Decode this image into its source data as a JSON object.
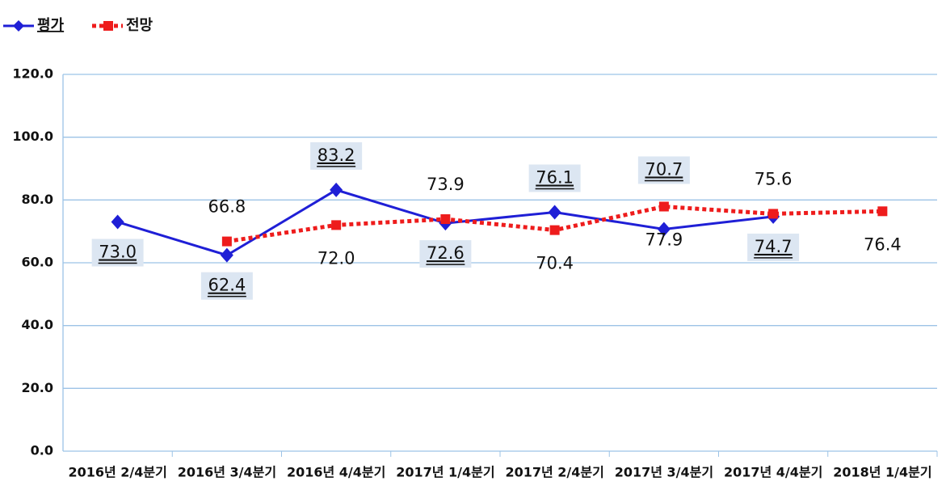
{
  "chart_data": {
    "type": "line",
    "categories": [
      "2016년 2/4분기",
      "2016년 3/4분기",
      "2016년 4/4분기",
      "2017년 1/4분기",
      "2017년 2/4분기",
      "2017년 3/4분기",
      "2017년 4/4분기",
      "2018년 1/4분기"
    ],
    "series": [
      {
        "name": "평가",
        "color": "#1f1fd6",
        "values": [
          73.0,
          62.4,
          83.2,
          72.6,
          76.1,
          70.7,
          74.7,
          null
        ],
        "value_labels": [
          "73.0",
          "62.4",
          "83.2",
          "72.6",
          "76.1",
          "70.7",
          "74.7",
          null
        ]
      },
      {
        "name": "전망",
        "color": "#ee1c1c",
        "values": [
          null,
          66.8,
          72.0,
          73.9,
          70.4,
          77.9,
          75.6,
          76.4
        ],
        "value_labels": [
          null,
          "66.8",
          "72.0",
          "73.9",
          "70.4",
          "77.9",
          "75.6",
          "76.4"
        ]
      }
    ],
    "ylim": [
      0,
      120
    ],
    "yticks": [
      {
        "value": 0,
        "label": "0.0"
      },
      {
        "value": 20,
        "label": "20.0"
      },
      {
        "value": 40,
        "label": "40.0"
      },
      {
        "value": 60,
        "label": "60.0"
      },
      {
        "value": 80,
        "label": "80.0"
      },
      {
        "value": 100,
        "label": "100.0"
      },
      {
        "value": 120,
        "label": "120.0"
      }
    ],
    "grid": true,
    "legend": "top-left"
  }
}
